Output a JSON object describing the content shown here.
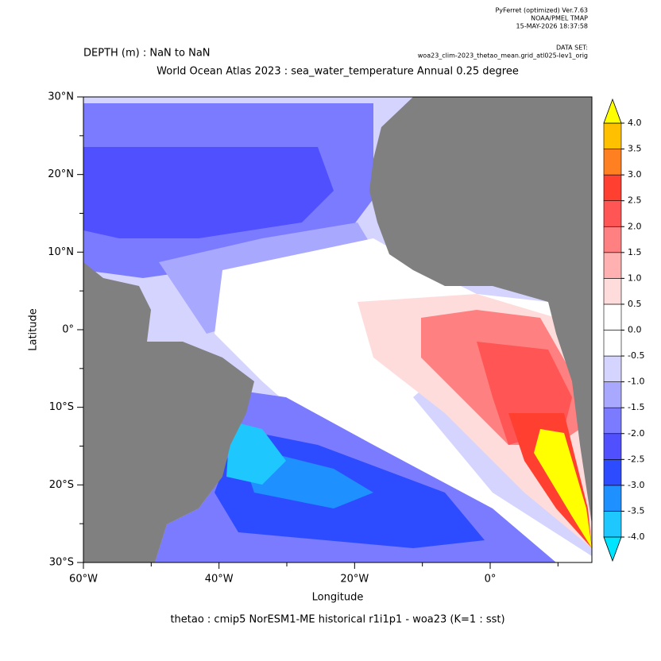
{
  "chart_data": {
    "type": "map",
    "header": {
      "program": "PyFerret (optimized) Ver.7.63",
      "org": "NOAA/PMEL TMAP",
      "date": "15-MAY-2026 18:37:58",
      "dataset_label": "DATA SET:",
      "dataset": "woa23_clim-2023_thetao_mean.grid_atl025-lev1_orig"
    },
    "depth": "DEPTH (m) : NaN to NaN",
    "title": "World Ocean Atlas 2023 : sea_water_temperature Annual  0.25 degree",
    "footer": "thetao : cmip5 NorESM1-ME historical r1i1p1 - woa23  (K=1 : sst)",
    "xlabel": "Longitude",
    "ylabel": "Latitude",
    "xlim": [
      -60,
      15
    ],
    "ylim": [
      -30,
      30
    ],
    "xticks": [
      {
        "value": -60,
        "label": "60°W"
      },
      {
        "value": -40,
        "label": "40°W"
      },
      {
        "value": -20,
        "label": "20°W"
      },
      {
        "value": 0,
        "label": "0°"
      }
    ],
    "xminor": [
      -50,
      -30,
      -10,
      10
    ],
    "yticks": [
      {
        "value": 30,
        "label": "30°N"
      },
      {
        "value": 20,
        "label": "20°N"
      },
      {
        "value": 10,
        "label": "10°N"
      },
      {
        "value": 0,
        "label": "0°"
      },
      {
        "value": -10,
        "label": "10°S"
      },
      {
        "value": -20,
        "label": "20°S"
      },
      {
        "value": -30,
        "label": "30°S"
      }
    ],
    "yminor": [
      25,
      15,
      5,
      -5,
      -15,
      -25
    ],
    "land_color": "#808080",
    "colorbar": {
      "levels": [
        {
          "value": -4,
          "label": "-4.0"
        },
        {
          "value": -3.5,
          "label": "-3.5"
        },
        {
          "value": -3,
          "label": "-3.0"
        },
        {
          "value": -2.5,
          "label": "-2.5"
        },
        {
          "value": -2,
          "label": "-2.0"
        },
        {
          "value": -1.5,
          "label": "-1.5"
        },
        {
          "value": -1,
          "label": "-1.0"
        },
        {
          "value": -0.5,
          "label": "-0.5"
        },
        {
          "value": 0,
          "label": "0.0"
        },
        {
          "value": 0.5,
          "label": "0.5"
        },
        {
          "value": 1,
          "label": "1.0"
        },
        {
          "value": 1.5,
          "label": "1.5"
        },
        {
          "value": 2,
          "label": "2.0"
        },
        {
          "value": 2.5,
          "label": "2.5"
        },
        {
          "value": 3,
          "label": "3.0"
        },
        {
          "value": 3.5,
          "label": "3.5"
        },
        {
          "value": 4,
          "label": "4.0"
        }
      ],
      "colors": [
        "#1ec8ff",
        "#1e90ff",
        "#2e4cff",
        "#5050ff",
        "#7b7bff",
        "#a8a8ff",
        "#d4d4ff",
        "#ffffff",
        "#ffffff",
        "#ffdcdc",
        "#ffb0b0",
        "#ff8080",
        "#ff5555",
        "#ff4030",
        "#ff8020",
        "#ffc000"
      ],
      "under_color": "#00e5ff",
      "over_color": "#ffff00"
    }
  }
}
